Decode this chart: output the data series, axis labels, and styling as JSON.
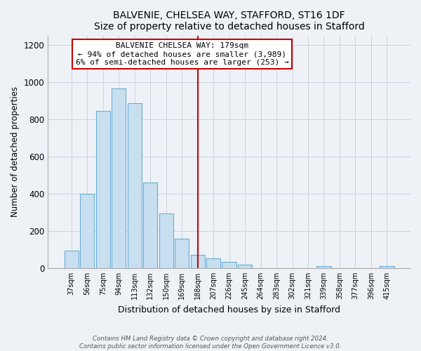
{
  "title": "BALVENIE, CHELSEA WAY, STAFFORD, ST16 1DF",
  "subtitle": "Size of property relative to detached houses in Stafford",
  "xlabel": "Distribution of detached houses by size in Stafford",
  "ylabel": "Number of detached properties",
  "bar_labels": [
    "37sqm",
    "56sqm",
    "75sqm",
    "94sqm",
    "113sqm",
    "132sqm",
    "150sqm",
    "169sqm",
    "188sqm",
    "207sqm",
    "226sqm",
    "245sqm",
    "264sqm",
    "283sqm",
    "302sqm",
    "321sqm",
    "339sqm",
    "358sqm",
    "377sqm",
    "396sqm",
    "415sqm"
  ],
  "bar_values": [
    95,
    400,
    845,
    965,
    885,
    460,
    295,
    160,
    72,
    52,
    35,
    20,
    0,
    0,
    0,
    0,
    10,
    0,
    0,
    0,
    10
  ],
  "bar_color": "#c8dff0",
  "bar_edge_color": "#6aadd5",
  "vline_x": 8.0,
  "vline_color": "#cc0000",
  "annotation_title": "BALVENIE CHELSEA WAY: 179sqm",
  "annotation_line1": "← 94% of detached houses are smaller (3,989)",
  "annotation_line2": "6% of semi-detached houses are larger (253) →",
  "annotation_border_color": "#cc0000",
  "ylim": [
    0,
    1250
  ],
  "yticks": [
    0,
    200,
    400,
    600,
    800,
    1000,
    1200
  ],
  "footer1": "Contains HM Land Registry data © Crown copyright and database right 2024.",
  "footer2": "Contains public sector information licensed under the Open Government Licence v3.0.",
  "background_color": "#eef2f7",
  "plot_bg_color": "#eef2f7"
}
